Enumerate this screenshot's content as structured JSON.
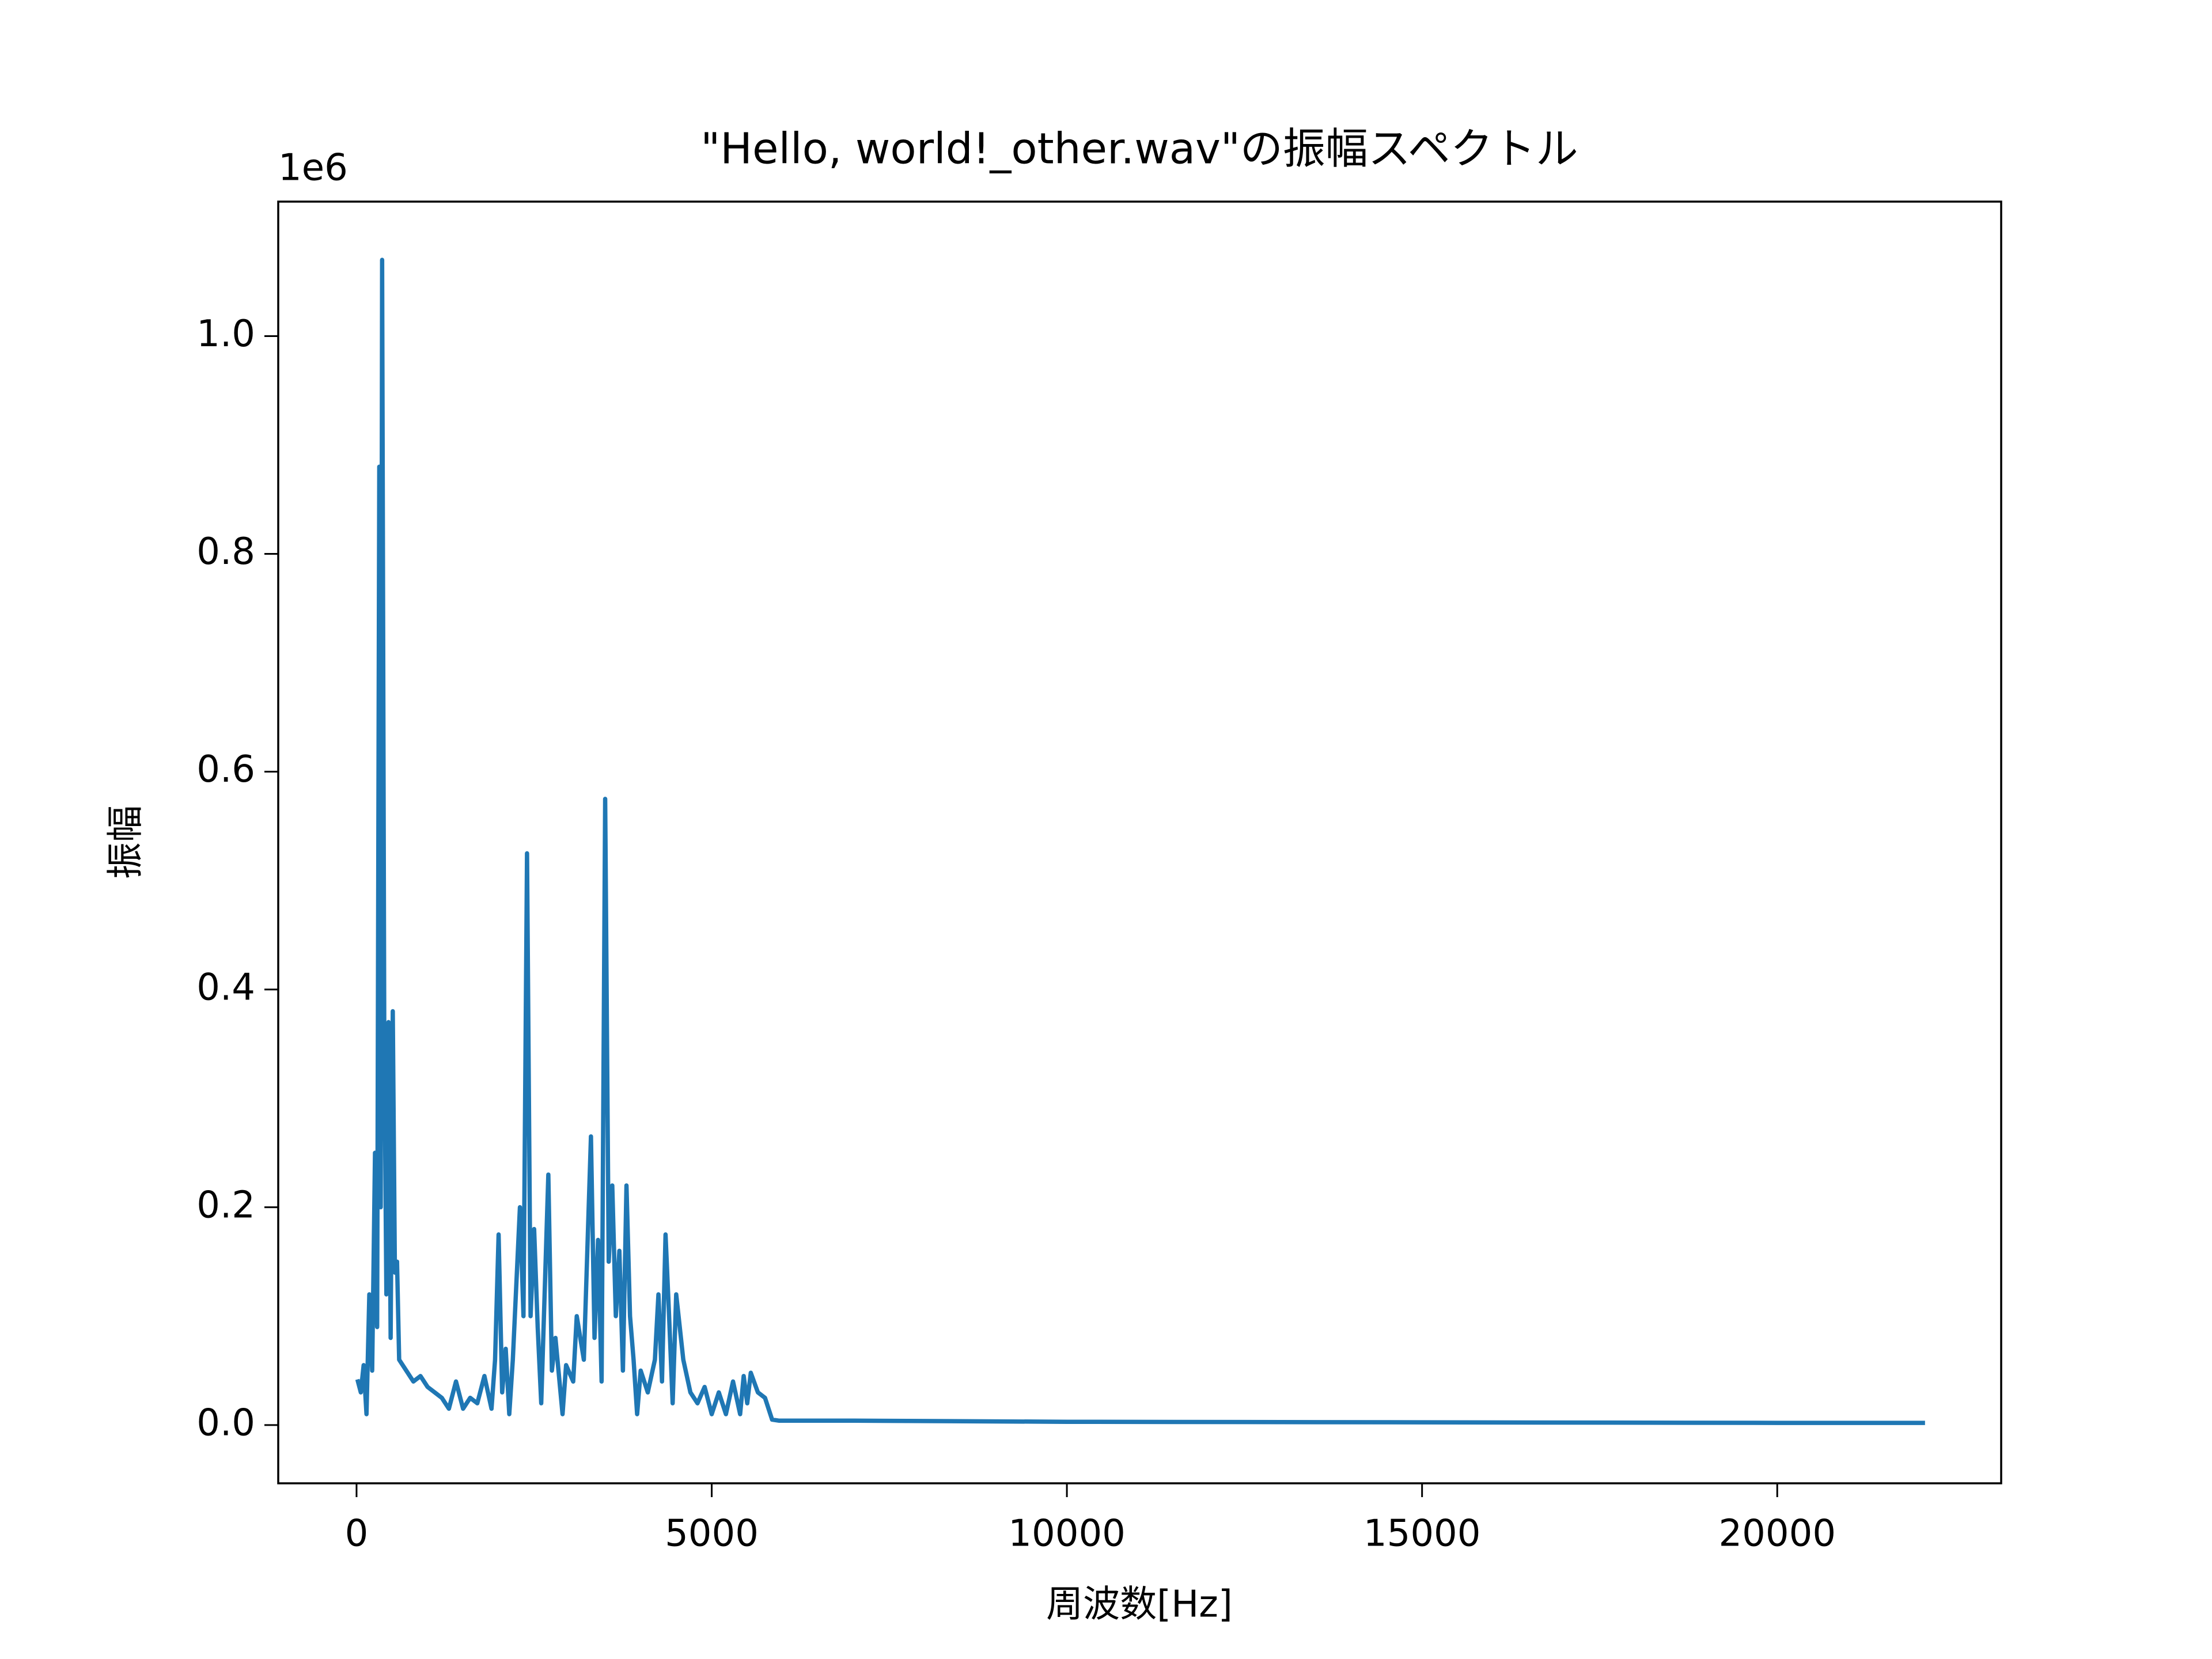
{
  "chart_data": {
    "type": "line",
    "title": "\"Hello, world!_other.wav\"の振幅スペクトル",
    "x_label": "周波数[Hz]",
    "y_label": "振幅",
    "y_offset_label": "1e6",
    "color": "#1f77b4",
    "xlim": [
      -1102.5,
      23152.5
    ],
    "ylim": [
      -53500,
      1123500
    ],
    "xticks": [
      0,
      5000,
      10000,
      15000,
      20000
    ],
    "yticks": [
      {
        "value": 0,
        "label": "0.0"
      },
      {
        "value": 200000,
        "label": "0.2"
      },
      {
        "value": 400000,
        "label": "0.4"
      },
      {
        "value": 600000,
        "label": "0.6"
      },
      {
        "value": 800000,
        "label": "0.8"
      },
      {
        "value": 1000000,
        "label": "1.0"
      }
    ],
    "x": [
      20,
      60,
      100,
      140,
      180,
      220,
      260,
      290,
      320,
      340,
      360,
      390,
      420,
      450,
      480,
      510,
      540,
      570,
      600,
      700,
      800,
      900,
      1000,
      1100,
      1200,
      1300,
      1400,
      1500,
      1600,
      1700,
      1800,
      1900,
      1950,
      2000,
      2050,
      2100,
      2150,
      2200,
      2300,
      2350,
      2400,
      2450,
      2500,
      2550,
      2600,
      2700,
      2750,
      2800,
      2900,
      2950,
      3050,
      3100,
      3200,
      3300,
      3350,
      3400,
      3450,
      3500,
      3550,
      3600,
      3650,
      3700,
      3750,
      3800,
      3850,
      3900,
      3950,
      4000,
      4100,
      4200,
      4250,
      4300,
      4350,
      4400,
      4450,
      4500,
      4600,
      4700,
      4800,
      4900,
      5000,
      5100,
      5200,
      5300,
      5400,
      5450,
      5500,
      5550,
      5650,
      5750,
      5850,
      5950,
      7000,
      10000,
      15000,
      20000,
      22050
    ],
    "values": [
      40000,
      30000,
      55000,
      10000,
      120000,
      50000,
      250000,
      90000,
      880000,
      200000,
      1070000,
      360000,
      120000,
      370000,
      80000,
      380000,
      140000,
      150000,
      60000,
      50000,
      40000,
      45000,
      35000,
      30000,
      25000,
      15000,
      40000,
      15000,
      25000,
      20000,
      45000,
      15000,
      60000,
      175000,
      30000,
      70000,
      10000,
      60000,
      200000,
      100000,
      525000,
      100000,
      180000,
      90000,
      20000,
      230000,
      50000,
      80000,
      10000,
      55000,
      40000,
      100000,
      60000,
      265000,
      80000,
      170000,
      40000,
      575000,
      150000,
      220000,
      100000,
      160000,
      50000,
      220000,
      100000,
      60000,
      10000,
      50000,
      30000,
      60000,
      120000,
      40000,
      175000,
      100000,
      20000,
      120000,
      60000,
      30000,
      20000,
      35000,
      10000,
      30000,
      10000,
      40000,
      10000,
      45000,
      20000,
      48000,
      30000,
      25000,
      5000,
      4000,
      4000,
      3000,
      2500,
      2000,
      2000
    ]
  }
}
